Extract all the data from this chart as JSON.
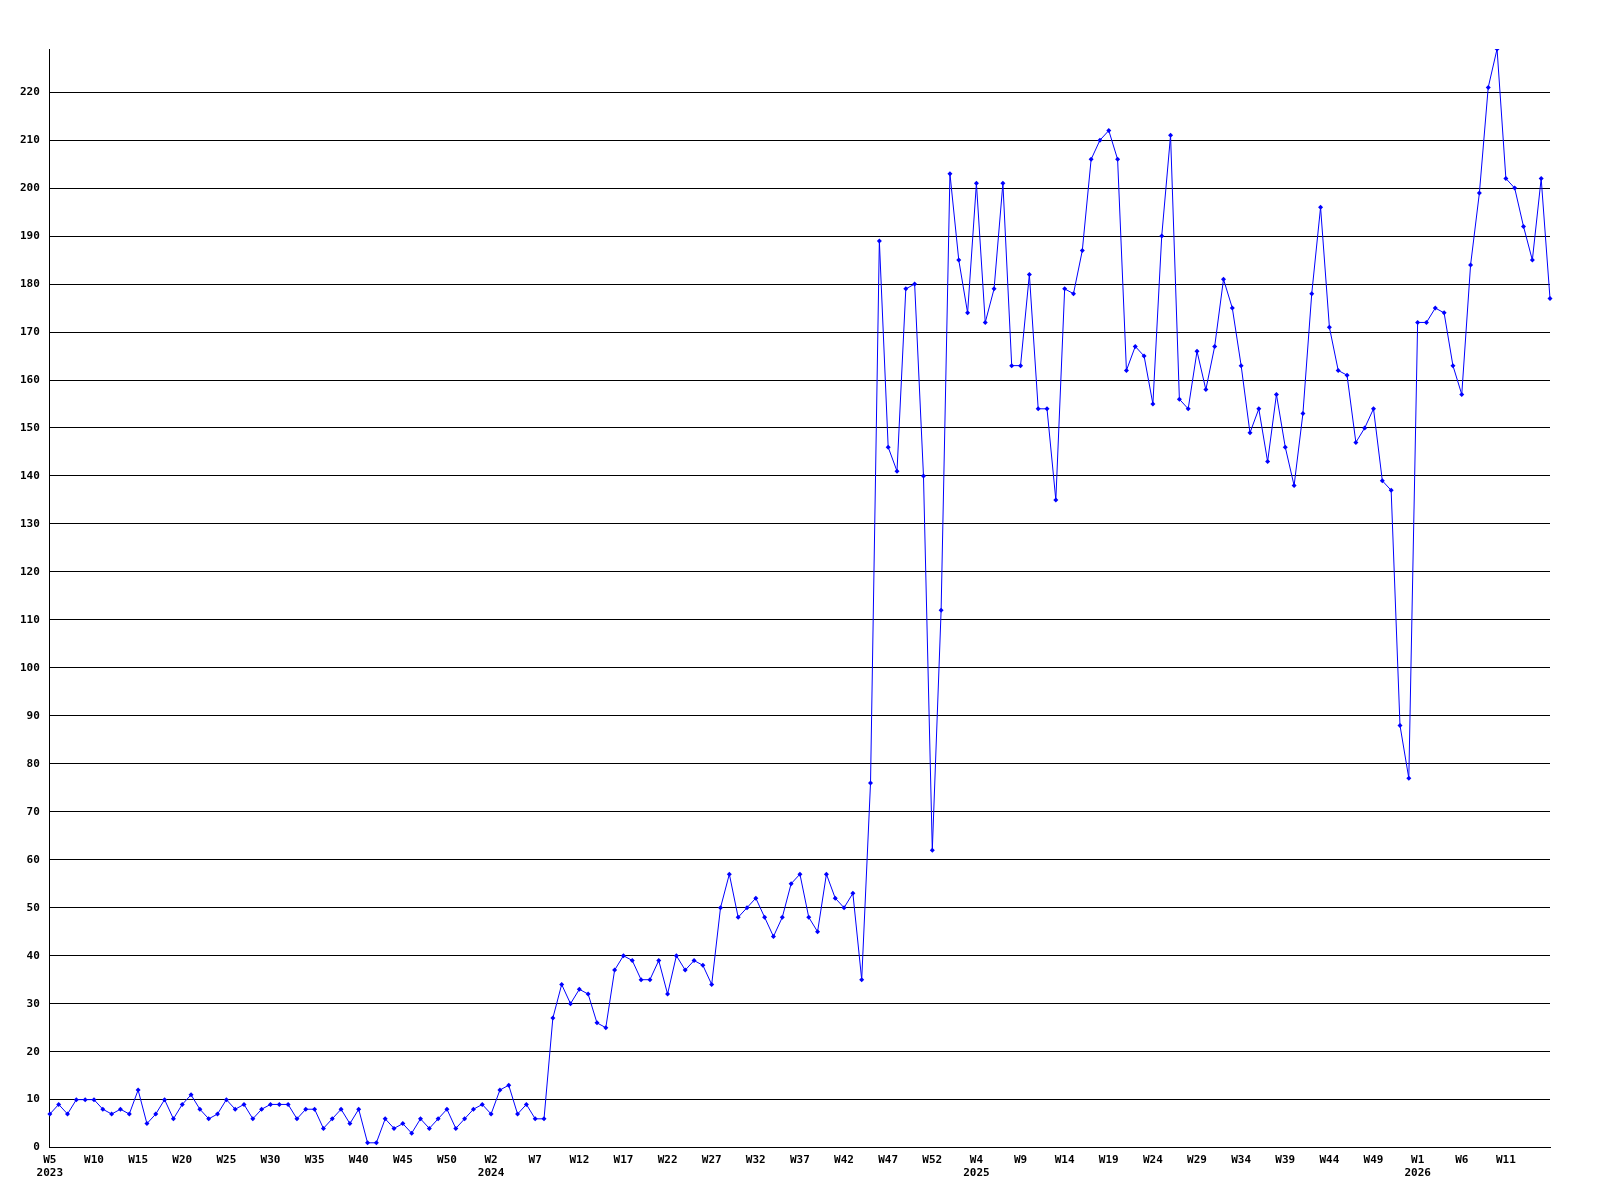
{
  "chart_data": {
    "type": "line",
    "categories": [
      "W5\n2023",
      null,
      null,
      null,
      null,
      "W10",
      null,
      null,
      null,
      null,
      "W15",
      null,
      null,
      null,
      null,
      "W20",
      null,
      null,
      null,
      null,
      "W25",
      null,
      null,
      null,
      null,
      "W30",
      null,
      null,
      null,
      null,
      "W35",
      null,
      null,
      null,
      null,
      "W40",
      null,
      null,
      null,
      null,
      "W45",
      null,
      null,
      null,
      null,
      "W50",
      null,
      null,
      null,
      null,
      "W2\n2024",
      null,
      null,
      null,
      null,
      "W7",
      null,
      null,
      null,
      null,
      "W12",
      null,
      null,
      null,
      null,
      "W17",
      null,
      null,
      null,
      null,
      "W22",
      null,
      null,
      null,
      null,
      "W27",
      null,
      null,
      null,
      null,
      "W32",
      null,
      null,
      null,
      null,
      "W37",
      null,
      null,
      null,
      null,
      "W42",
      null,
      null,
      null,
      null,
      "W47",
      null,
      null,
      null,
      null,
      "W52",
      null,
      null,
      null,
      null,
      "W4\n2025",
      null,
      null,
      null,
      null,
      "W9",
      null,
      null,
      null,
      null,
      "W14",
      null,
      null,
      null,
      null,
      "W19",
      null,
      null,
      null,
      null,
      "W24",
      null,
      null,
      null,
      null,
      "W29",
      null,
      null,
      null,
      null,
      "W34",
      null,
      null,
      null,
      null,
      "W39",
      null,
      null,
      null,
      null,
      "W44",
      null,
      null,
      null,
      null,
      "W49",
      null,
      null,
      null,
      null,
      "W1\n2026",
      null,
      null,
      null,
      null,
      "W6",
      null,
      null,
      null,
      null,
      "W11",
      null,
      null,
      null,
      null,
      null
    ],
    "series": [
      {
        "color": "#0000ff",
        "values": [
          7,
          9,
          7,
          10,
          10,
          10,
          8,
          7,
          8,
          7,
          12,
          5,
          7,
          10,
          6,
          9,
          11,
          8,
          6,
          7,
          10,
          8,
          9,
          6,
          8,
          9,
          9,
          9,
          6,
          8,
          8,
          4,
          6,
          8,
          5,
          8,
          1,
          1,
          6,
          4,
          5,
          3,
          6,
          4,
          6,
          8,
          4,
          6,
          8,
          9,
          7,
          12,
          13,
          7,
          9,
          6,
          6,
          27,
          34,
          30,
          33,
          32,
          26,
          25,
          37,
          40,
          39,
          35,
          35,
          39,
          32,
          40,
          37,
          39,
          38,
          34,
          50,
          57,
          48,
          50,
          52,
          48,
          44,
          48,
          55,
          57,
          48,
          45,
          57,
          52,
          50,
          53,
          35,
          76,
          189,
          146,
          141,
          179,
          180,
          140,
          62,
          112,
          203,
          185,
          174,
          201,
          172,
          179,
          201,
          163,
          163,
          182,
          154,
          154,
          135,
          179,
          178,
          187,
          206,
          210,
          212,
          206,
          162,
          167,
          165,
          155,
          190,
          211,
          156,
          154,
          166,
          158,
          167,
          181,
          175,
          163,
          149,
          154,
          143,
          157,
          146,
          138,
          153,
          178,
          196,
          171,
          162,
          161,
          147,
          150,
          154,
          139,
          137,
          88,
          77,
          172,
          172,
          175,
          174,
          163,
          157,
          184,
          199,
          221,
          229,
          202,
          200,
          192,
          185,
          202,
          177
        ]
      }
    ],
    "ylim": [
      0,
      229
    ],
    "yticks": [
      0,
      10,
      20,
      30,
      40,
      50,
      60,
      70,
      80,
      90,
      100,
      110,
      120,
      130,
      140,
      150,
      160,
      170,
      180,
      190,
      200,
      210,
      220
    ],
    "grid": "y",
    "legend": false,
    "marker": "diamond",
    "line_style": "solid"
  }
}
